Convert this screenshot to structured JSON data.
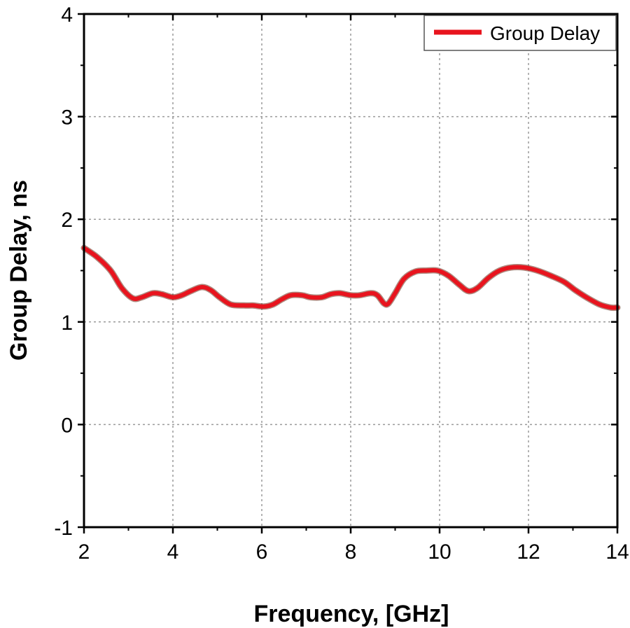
{
  "chart_data": {
    "type": "line",
    "xlabel": "Frequency, [GHz]",
    "ylabel": "Group Delay, ns",
    "xlim": [
      2,
      14
    ],
    "ylim": [
      -1,
      4
    ],
    "xticks": [
      "2",
      "4",
      "6",
      "8",
      "10",
      "12",
      "14"
    ],
    "yticks": [
      "4",
      "3",
      "2",
      "1",
      "0",
      "-1"
    ],
    "grid": true,
    "legend_position": "top-right",
    "series": [
      {
        "name": "Group Delay",
        "color": "#e8141e",
        "points": [
          [
            2.0,
            1.72
          ],
          [
            2.3,
            1.63
          ],
          [
            2.6,
            1.5
          ],
          [
            2.85,
            1.33
          ],
          [
            3.1,
            1.23
          ],
          [
            3.3,
            1.24
          ],
          [
            3.55,
            1.28
          ],
          [
            3.75,
            1.27
          ],
          [
            4.0,
            1.24
          ],
          [
            4.2,
            1.26
          ],
          [
            4.4,
            1.3
          ],
          [
            4.65,
            1.34
          ],
          [
            4.85,
            1.31
          ],
          [
            5.05,
            1.24
          ],
          [
            5.3,
            1.17
          ],
          [
            5.6,
            1.16
          ],
          [
            5.8,
            1.16
          ],
          [
            6.05,
            1.15
          ],
          [
            6.25,
            1.17
          ],
          [
            6.45,
            1.22
          ],
          [
            6.65,
            1.26
          ],
          [
            6.9,
            1.26
          ],
          [
            7.1,
            1.24
          ],
          [
            7.35,
            1.24
          ],
          [
            7.55,
            1.27
          ],
          [
            7.75,
            1.28
          ],
          [
            8.0,
            1.26
          ],
          [
            8.2,
            1.26
          ],
          [
            8.45,
            1.28
          ],
          [
            8.6,
            1.26
          ],
          [
            8.75,
            1.18
          ],
          [
            8.85,
            1.18
          ],
          [
            9.0,
            1.28
          ],
          [
            9.2,
            1.42
          ],
          [
            9.45,
            1.49
          ],
          [
            9.7,
            1.5
          ],
          [
            9.95,
            1.5
          ],
          [
            10.2,
            1.45
          ],
          [
            10.45,
            1.36
          ],
          [
            10.65,
            1.3
          ],
          [
            10.85,
            1.33
          ],
          [
            11.1,
            1.43
          ],
          [
            11.35,
            1.5
          ],
          [
            11.6,
            1.53
          ],
          [
            11.9,
            1.53
          ],
          [
            12.2,
            1.5
          ],
          [
            12.5,
            1.45
          ],
          [
            12.8,
            1.39
          ],
          [
            13.05,
            1.31
          ],
          [
            13.3,
            1.24
          ],
          [
            13.6,
            1.17
          ],
          [
            13.85,
            1.14
          ],
          [
            14.0,
            1.14
          ]
        ]
      }
    ]
  }
}
